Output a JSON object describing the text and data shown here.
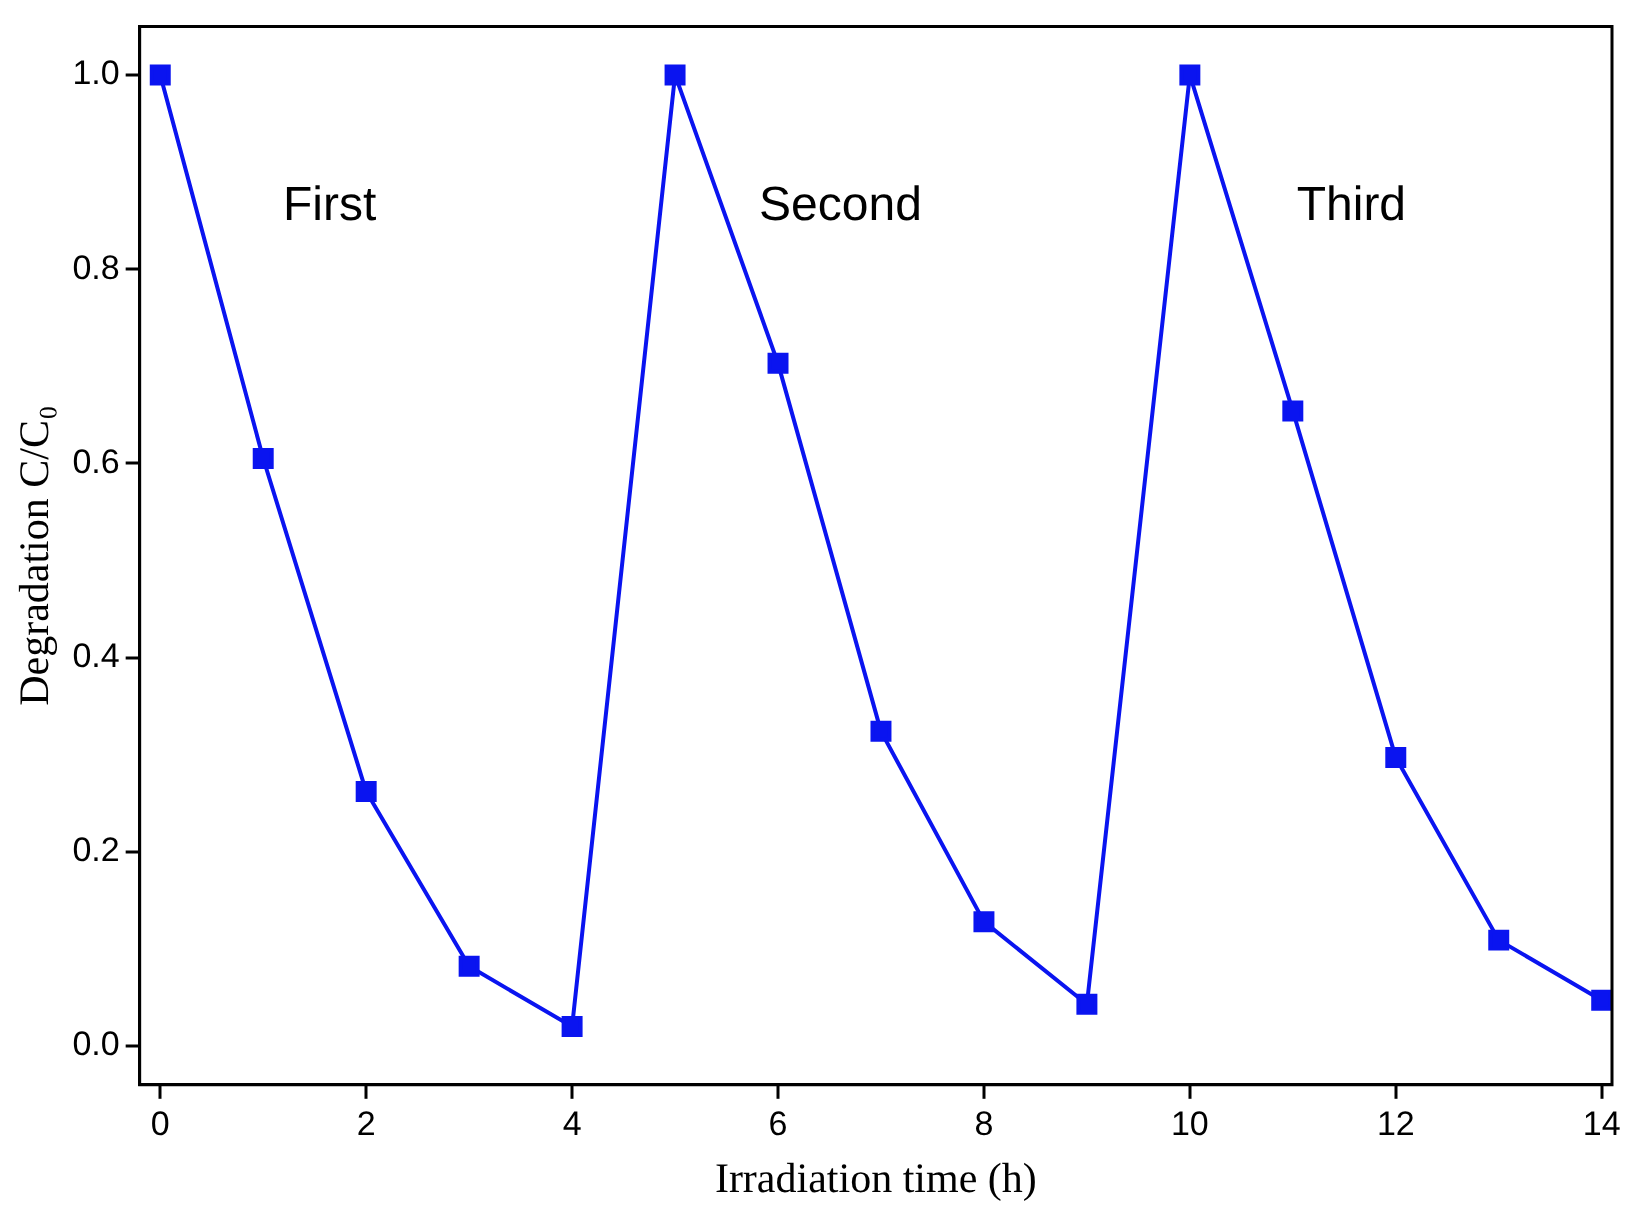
{
  "chart_data": {
    "type": "line",
    "xlabel": "Irradiation time (h)",
    "ylabel": "Degradation C/C₀",
    "x": [
      0,
      1,
      2,
      3,
      4,
      5,
      6,
      7,
      8,
      9,
      10,
      11,
      12,
      13,
      14
    ],
    "series": [
      {
        "color": "#0a14f0",
        "values": [
          1.0,
          0.605,
          0.262,
          0.082,
          0.02,
          1.0,
          0.703,
          0.324,
          0.128,
          0.043,
          1.0,
          0.654,
          0.297,
          0.109,
          0.047
        ]
      }
    ],
    "xlim": [
      -0.2,
      14.1
    ],
    "xticks": [
      0,
      2,
      4,
      6,
      8,
      10,
      12,
      14
    ],
    "ylim": [
      -0.04,
      1.05
    ],
    "yticks": [
      {
        "value": 0,
        "label": "0.0"
      },
      {
        "value": 0.2,
        "label": "0.2"
      },
      {
        "value": 0.4,
        "label": "0.4"
      },
      {
        "value": 0.6,
        "label": "0.6"
      },
      {
        "value": 0.8,
        "label": "0.8"
      },
      {
        "value": 1,
        "label": "1.0"
      }
    ],
    "annotations": [
      "First",
      "Second",
      "Third"
    ],
    "grid": false,
    "legend": false,
    "marker": "square",
    "line_style": "solid"
  }
}
